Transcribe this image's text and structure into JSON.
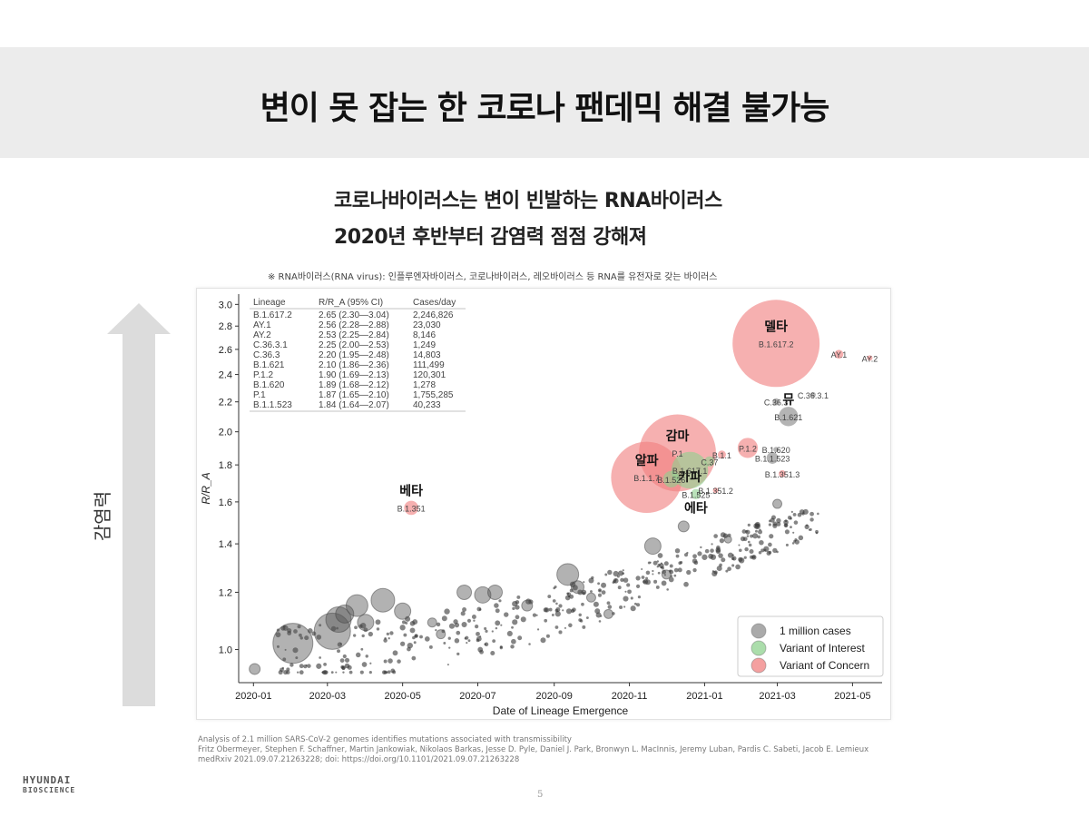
{
  "title": "변이 못 잡는 한 코로나 팬데믹 해결 불가능",
  "subtitle_lines": [
    "코로나바이러스는 변이 빈발하는 RNA바이러스",
    "2020년 후반부터 감염력 점점 강해져"
  ],
  "note": "※ RNA바이러스(RNA virus): 인플루엔자바이러스, 코로나바이러스, 레오바이러스 등 RNA를 유전자로 갖는 바이러스",
  "side_label": "감염력",
  "colors": {
    "title_band": "#ececec",
    "concern": "#f08080",
    "interest": "#8fd18f",
    "cases": "#555555",
    "arrow": "#dcdcdc"
  },
  "chart_data": {
    "type": "scatter",
    "xlabel": "Date of Lineage Emergence",
    "ylabel": "R/R_A",
    "y_scale": "log",
    "xlim": [
      "2019-12-20",
      "2021-05-25"
    ],
    "ylim": [
      0.9,
      3.1
    ],
    "x_ticks": [
      "2020-01",
      "2020-03",
      "2020-05",
      "2020-07",
      "2020-09",
      "2020-11",
      "2021-01",
      "2021-03",
      "2021-05"
    ],
    "y_ticks": [
      1.0,
      1.2,
      1.4,
      1.6,
      1.8,
      2.0,
      2.2,
      2.4,
      2.6,
      2.8,
      3.0
    ],
    "table": {
      "headers": [
        "Lineage",
        "R/R_A (95% CI)",
        "Cases/day"
      ],
      "rows": [
        [
          "B.1.617.2",
          "2.65 (2.30—3.04)",
          "2,246,826"
        ],
        [
          "AY.1",
          "2.56 (2.28—2.88)",
          "23,030"
        ],
        [
          "AY.2",
          "2.53 (2.25—2.84)",
          "8,146"
        ],
        [
          "C.36.3.1",
          "2.25 (2.00—2.53)",
          "1,249"
        ],
        [
          "C.36.3",
          "2.20 (1.95—2.48)",
          "14,803"
        ],
        [
          "B.1.621",
          "2.10 (1.86—2.36)",
          "111,499"
        ],
        [
          "P.1.2",
          "1.90 (1.69—2.13)",
          "120,301"
        ],
        [
          "B.1.620",
          "1.89 (1.68—2.12)",
          "1,278"
        ],
        [
          "P.1",
          "1.87 (1.65—2.10)",
          "1,755,285"
        ],
        [
          "B.1.1.523",
          "1.84 (1.64—2.07)",
          "40,233"
        ]
      ]
    },
    "legend": [
      "1 million cases",
      "Variant of Interest",
      "Variant of Concern"
    ],
    "legend_position": "bottom-right",
    "variants": [
      {
        "label": "B.1.617.2",
        "korean": "델타",
        "x": "2021-02-28",
        "y": 2.65,
        "cases": 2246826,
        "type": "concern"
      },
      {
        "label": "AY.1",
        "x": "2021-04-20",
        "y": 2.56,
        "cases": 23030,
        "type": "concern"
      },
      {
        "label": "AY.2",
        "x": "2021-05-15",
        "y": 2.53,
        "cases": 8146,
        "type": "concern"
      },
      {
        "label": "B.1.1.7",
        "korean": "알파",
        "x": "2020-11-15",
        "y": 1.73,
        "cases": 1500000,
        "type": "concern"
      },
      {
        "label": "P.1",
        "korean": "감마",
        "x": "2020-12-10",
        "y": 1.87,
        "cases": 1755285,
        "type": "concern"
      },
      {
        "label": "B.1.351",
        "korean": "베타",
        "x": "2020-05-08",
        "y": 1.57,
        "cases": 60000,
        "type": "concern"
      },
      {
        "label": "P.1.2",
        "x": "2021-02-05",
        "y": 1.9,
        "cases": 120301,
        "type": "concern"
      },
      {
        "label": "B.1.1",
        "x": "2021-01-15",
        "y": 1.86,
        "cases": 20000,
        "type": "concern"
      },
      {
        "label": "B.1.351.3",
        "x": "2021-03-05",
        "y": 1.75,
        "cases": 15000,
        "type": "concern"
      },
      {
        "label": "B.1.617.1",
        "korean": "카파",
        "x": "2020-12-20",
        "y": 1.77,
        "cases": 400000,
        "type": "interest"
      },
      {
        "label": "B.1.526",
        "x": "2020-12-05",
        "y": 1.72,
        "cases": 80000,
        "type": "interest"
      },
      {
        "label": "B.1.525",
        "korean": "에타",
        "x": "2020-12-25",
        "y": 1.64,
        "cases": 30000,
        "type": "interest"
      },
      {
        "label": "B.1.351.2",
        "x": "2021-01-10",
        "y": 1.66,
        "cases": 8000,
        "type": "concern"
      },
      {
        "label": "C.37",
        "x": "2021-01-05",
        "y": 1.82,
        "cases": 30000,
        "type": "interest"
      },
      {
        "label": "B.1.621",
        "korean": "뮤",
        "x": "2021-03-10",
        "y": 2.1,
        "cases": 111499,
        "type": "neutral"
      },
      {
        "label": "C.36.3",
        "x": "2021-02-28",
        "y": 2.2,
        "cases": 14803,
        "type": "neutral"
      },
      {
        "label": "C.36.3.1",
        "x": "2021-03-30",
        "y": 2.25,
        "cases": 1249,
        "type": "neutral"
      },
      {
        "label": "B.1.620",
        "x": "2021-02-28",
        "y": 1.89,
        "cases": 1278,
        "type": "neutral"
      },
      {
        "label": "B.1.1.523",
        "x": "2021-02-25",
        "y": 1.84,
        "cases": 40233,
        "type": "neutral"
      }
    ]
  },
  "citation_lines": [
    "Analysis of 2.1 million SARS-CoV-2 genomes identifies mutations associated with transmissibility",
    "Fritz Obermeyer, Stephen F. Schaffner, Martin Jankowiak, Nikolaos Barkas, Jesse D. Pyle, Daniel J. Park, Bronwyn L. MacInnis, Jeremy Luban, Pardis C. Sabeti, Jacob E. Lemieux",
    "medRxiv 2021.09.07.21263228; doi: https://doi.org/10.1101/2021.09.07.21263228"
  ],
  "logo": {
    "line1": "HYUNDAI",
    "line2": "BIOSCIENCE"
  },
  "page_number": "5"
}
